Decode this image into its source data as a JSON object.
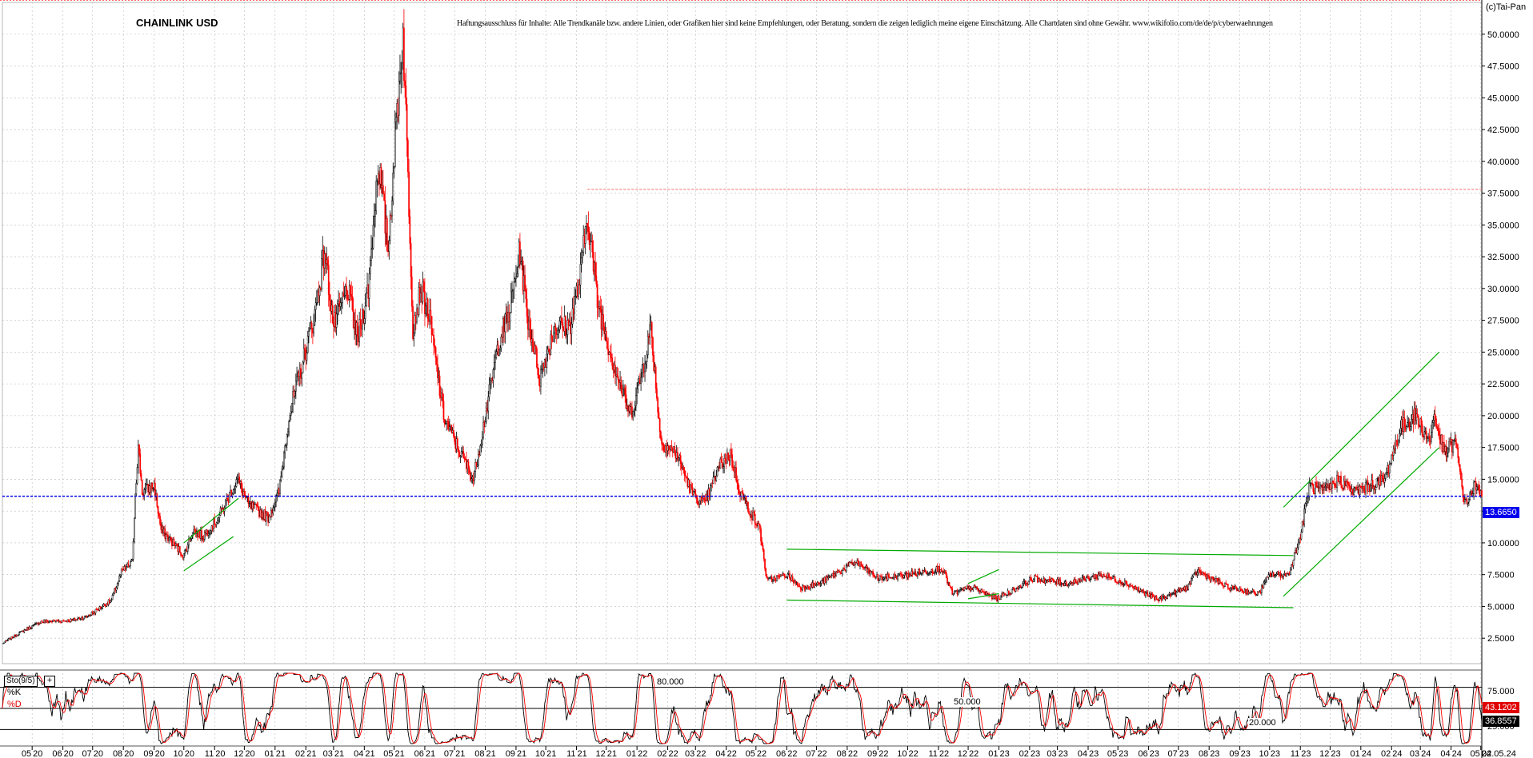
{
  "chart_data": {
    "type": "candlestick",
    "title": "CHAINLINK USD",
    "copyright": "(c)Tai-Pan",
    "disclaimer": "Haftungsausschluss für Inhalte: Alle Trendkanäle bzw. andere Linien, oder Grafiken hier sind keine Empfehlungen, oder Beratung, sondern die zeigen lediglich meine eigene Einschätzung. Alle Chartdaten sind ohne Gewähr. www.wikifolio.com/de/de/p/cyberwaehrungen",
    "y_axis": {
      "ticks": [
        "50.0000",
        "47.5000",
        "45.0000",
        "42.5000",
        "40.0000",
        "37.5000",
        "35.0000",
        "32.5000",
        "30.0000",
        "27.5000",
        "25.0000",
        "22.5000",
        "20.0000",
        "17.5000",
        "15.0000",
        "12.5000",
        "10.0000",
        "7.5000",
        "5.0000",
        "2.5000"
      ],
      "ylim": [
        0.5,
        52.5
      ]
    },
    "x_axis": {
      "ticks": [
        "05|20",
        "06|20",
        "07|20",
        "08|20",
        "09|20",
        "10|20",
        "11|20",
        "12|20",
        "01|21",
        "02|21",
        "03|21",
        "04|21",
        "05|21",
        "06|21",
        "07|21",
        "08|21",
        "09|21",
        "10|21",
        "11|21",
        "12|21",
        "01|22",
        "02|22",
        "03|22",
        "04|22",
        "05|22",
        "06|22",
        "07|22",
        "08|22",
        "09|22",
        "10|22",
        "11|22",
        "12|22",
        "01|23",
        "02|23",
        "03|23",
        "04|23",
        "05|23",
        "06|23",
        "07|23",
        "08|23",
        "09|23",
        "10|23",
        "11|23",
        "12|23",
        "01|24",
        "02|24",
        "03|24",
        "04|24",
        "05|24"
      ],
      "last_label": "02.05.24",
      "range": [
        "2020-04-01",
        "2024-05-02"
      ]
    },
    "current_price": "13.6650",
    "resistance_level": 37.8,
    "colors": {
      "up": "#000000",
      "down": "#ff0000",
      "trendline": "#00aa00",
      "current_line": "#0000ee",
      "resistance": "#ff6666"
    },
    "anchors": [
      {
        "d": "2020-04-01",
        "p": 2.1
      },
      {
        "d": "2020-04-20",
        "p": 3.0
      },
      {
        "d": "2020-05-10",
        "p": 3.8
      },
      {
        "d": "2020-06-10",
        "p": 3.9
      },
      {
        "d": "2020-06-25",
        "p": 4.2
      },
      {
        "d": "2020-07-01",
        "p": 4.5
      },
      {
        "d": "2020-07-20",
        "p": 5.5
      },
      {
        "d": "2020-07-30",
        "p": 7.7
      },
      {
        "d": "2020-08-10",
        "p": 8.5
      },
      {
        "d": "2020-08-13",
        "p": 14.0
      },
      {
        "d": "2020-08-16",
        "p": 17.5
      },
      {
        "d": "2020-08-20",
        "p": 14.0
      },
      {
        "d": "2020-09-01",
        "p": 14.5
      },
      {
        "d": "2020-09-08",
        "p": 11.0
      },
      {
        "d": "2020-09-20",
        "p": 10.0
      },
      {
        "d": "2020-10-01",
        "p": 9.0
      },
      {
        "d": "2020-10-10",
        "p": 11.0
      },
      {
        "d": "2020-10-20",
        "p": 10.5
      },
      {
        "d": "2020-11-05",
        "p": 12.0
      },
      {
        "d": "2020-11-24",
        "p": 15.0
      },
      {
        "d": "2020-12-05",
        "p": 13.0
      },
      {
        "d": "2020-12-25",
        "p": 12.0
      },
      {
        "d": "2021-01-05",
        "p": 14.0
      },
      {
        "d": "2021-01-15",
        "p": 20.0
      },
      {
        "d": "2021-01-25",
        "p": 23.0
      },
      {
        "d": "2021-02-10",
        "p": 28.0
      },
      {
        "d": "2021-02-20",
        "p": 33.0
      },
      {
        "d": "2021-03-01",
        "p": 27.0
      },
      {
        "d": "2021-03-15",
        "p": 30.0
      },
      {
        "d": "2021-03-25",
        "p": 26.0
      },
      {
        "d": "2021-04-05",
        "p": 30.0
      },
      {
        "d": "2021-04-15",
        "p": 40.0
      },
      {
        "d": "2021-04-25",
        "p": 33.0
      },
      {
        "d": "2021-05-03",
        "p": 43.0
      },
      {
        "d": "2021-05-10",
        "p": 50.0
      },
      {
        "d": "2021-05-15",
        "p": 39.0
      },
      {
        "d": "2021-05-20",
        "p": 27.0
      },
      {
        "d": "2021-05-28",
        "p": 30.0
      },
      {
        "d": "2021-06-05",
        "p": 28.0
      },
      {
        "d": "2021-06-20",
        "p": 20.0
      },
      {
        "d": "2021-07-01",
        "p": 18.0
      },
      {
        "d": "2021-07-20",
        "p": 15.0
      },
      {
        "d": "2021-08-01",
        "p": 20.0
      },
      {
        "d": "2021-08-15",
        "p": 26.0
      },
      {
        "d": "2021-08-25",
        "p": 28.0
      },
      {
        "d": "2021-09-05",
        "p": 33.0
      },
      {
        "d": "2021-09-12",
        "p": 28.0
      },
      {
        "d": "2021-09-25",
        "p": 23.0
      },
      {
        "d": "2021-10-10",
        "p": 27.0
      },
      {
        "d": "2021-10-25",
        "p": 27.0
      },
      {
        "d": "2021-11-05",
        "p": 31.0
      },
      {
        "d": "2021-11-12",
        "p": 36.0
      },
      {
        "d": "2021-11-22",
        "p": 29.0
      },
      {
        "d": "2021-12-05",
        "p": 25.0
      },
      {
        "d": "2021-12-25",
        "p": 20.0
      },
      {
        "d": "2022-01-05",
        "p": 23.0
      },
      {
        "d": "2022-01-15",
        "p": 27.0
      },
      {
        "d": "2022-01-25",
        "p": 18.0
      },
      {
        "d": "2022-02-10",
        "p": 17.0
      },
      {
        "d": "2022-02-25",
        "p": 14.0
      },
      {
        "d": "2022-03-10",
        "p": 13.0
      },
      {
        "d": "2022-03-25",
        "p": 16.0
      },
      {
        "d": "2022-04-05",
        "p": 17.0
      },
      {
        "d": "2022-04-15",
        "p": 14.0
      },
      {
        "d": "2022-05-05",
        "p": 11.0
      },
      {
        "d": "2022-05-12",
        "p": 7.0
      },
      {
        "d": "2022-06-01",
        "p": 7.5
      },
      {
        "d": "2022-06-15",
        "p": 6.5
      },
      {
        "d": "2022-07-01",
        "p": 6.7
      },
      {
        "d": "2022-08-10",
        "p": 8.5
      },
      {
        "d": "2022-09-01",
        "p": 7.2
      },
      {
        "d": "2022-10-01",
        "p": 7.5
      },
      {
        "d": "2022-11-05",
        "p": 8.0
      },
      {
        "d": "2022-11-15",
        "p": 6.0
      },
      {
        "d": "2022-12-05",
        "p": 6.5
      },
      {
        "d": "2022-12-30",
        "p": 5.6
      },
      {
        "d": "2023-02-05",
        "p": 7.2
      },
      {
        "d": "2023-03-10",
        "p": 6.8
      },
      {
        "d": "2023-04-15",
        "p": 7.5
      },
      {
        "d": "2023-05-10",
        "p": 6.8
      },
      {
        "d": "2023-06-10",
        "p": 5.5
      },
      {
        "d": "2023-07-10",
        "p": 6.5
      },
      {
        "d": "2023-07-20",
        "p": 7.8
      },
      {
        "d": "2023-08-20",
        "p": 6.5
      },
      {
        "d": "2023-09-20",
        "p": 6.0
      },
      {
        "d": "2023-10-01",
        "p": 7.5
      },
      {
        "d": "2023-10-20",
        "p": 7.5
      },
      {
        "d": "2023-11-01",
        "p": 10.5
      },
      {
        "d": "2023-11-10",
        "p": 14.5
      },
      {
        "d": "2023-11-25",
        "p": 14.0
      },
      {
        "d": "2023-12-10",
        "p": 15.0
      },
      {
        "d": "2023-12-25",
        "p": 14.0
      },
      {
        "d": "2024-01-10",
        "p": 14.5
      },
      {
        "d": "2024-01-25",
        "p": 15.0
      },
      {
        "d": "2024-02-10",
        "p": 19.0
      },
      {
        "d": "2024-02-25",
        "p": 20.0
      },
      {
        "d": "2024-03-10",
        "p": 18.0
      },
      {
        "d": "2024-03-15",
        "p": 20.0
      },
      {
        "d": "2024-03-25",
        "p": 17.0
      },
      {
        "d": "2024-04-05",
        "p": 18.0
      },
      {
        "d": "2024-04-15",
        "p": 13.0
      },
      {
        "d": "2024-04-25",
        "p": 14.5
      },
      {
        "d": "2024-05-02",
        "p": 13.66
      }
    ],
    "trendlines": [
      {
        "from": {
          "d": "2020-10-01",
          "p": 7.8
        },
        "to": {
          "d": "2020-11-20",
          "p": 10.5
        }
      },
      {
        "from": {
          "d": "2020-10-01",
          "p": 10.0
        },
        "to": {
          "d": "2020-11-25",
          "p": 13.5
        }
      },
      {
        "from": {
          "d": "2022-06-01",
          "p": 9.5
        },
        "to": {
          "d": "2023-10-25",
          "p": 9.0
        }
      },
      {
        "from": {
          "d": "2022-06-01",
          "p": 5.5
        },
        "to": {
          "d": "2023-10-25",
          "p": 4.9
        }
      },
      {
        "from": {
          "d": "2022-12-01",
          "p": 5.6
        },
        "to": {
          "d": "2023-01-01",
          "p": 6.0
        }
      },
      {
        "from": {
          "d": "2022-12-01",
          "p": 6.8
        },
        "to": {
          "d": "2023-01-01",
          "p": 7.9
        }
      },
      {
        "from": {
          "d": "2023-10-15",
          "p": 12.8
        },
        "to": {
          "d": "2024-03-20",
          "p": 25.0
        }
      },
      {
        "from": {
          "d": "2023-10-15",
          "p": 5.8
        },
        "to": {
          "d": "2024-03-20",
          "p": 17.5
        }
      }
    ],
    "indicator": {
      "name": "Sto(9/5)",
      "k_label": "%K",
      "d_label": "%D",
      "levels": [
        {
          "label": "80.000",
          "value": 80
        },
        {
          "label": "50.000",
          "value": 50
        },
        {
          "label": "20.000",
          "value": 20
        }
      ],
      "right_ticks": [
        "75.000",
        "25.000"
      ],
      "k_value": "43.1202",
      "d_value": "36.8557",
      "range": [
        0,
        100
      ],
      "colors": {
        "k": "#000000",
        "d": "#ff0000"
      }
    }
  }
}
